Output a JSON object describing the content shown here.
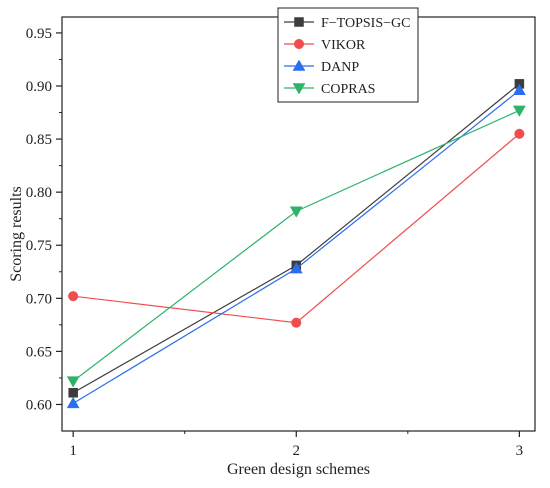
{
  "chart_data": {
    "type": "line",
    "x": [
      1,
      2,
      3
    ],
    "xlabel": "Green design schemes",
    "ylabel": "Scoring results",
    "xlim": [
      0.95,
      3.07
    ],
    "ylim": [
      0.575,
      0.965
    ],
    "xticks": [
      "1",
      "2",
      "3"
    ],
    "yticks": [
      "0.60",
      "0.65",
      "0.70",
      "0.75",
      "0.80",
      "0.85",
      "0.90",
      "0.95"
    ],
    "grid": false,
    "legend_position": "top-right",
    "series": [
      {
        "name": "F−TOPSIS−GC",
        "values": [
          0.611,
          0.731,
          0.902
        ],
        "color": "#3d3d3d",
        "marker": "square"
      },
      {
        "name": "VIKOR",
        "values": [
          0.702,
          0.677,
          0.855
        ],
        "color": "#f04e4e",
        "marker": "circle"
      },
      {
        "name": "DANP",
        "values": [
          0.601,
          0.728,
          0.896
        ],
        "color": "#2a6ff0",
        "marker": "triangle-up"
      },
      {
        "name": "COPRAS",
        "values": [
          0.622,
          0.782,
          0.877
        ],
        "color": "#2db36a",
        "marker": "triangle-down"
      }
    ]
  }
}
